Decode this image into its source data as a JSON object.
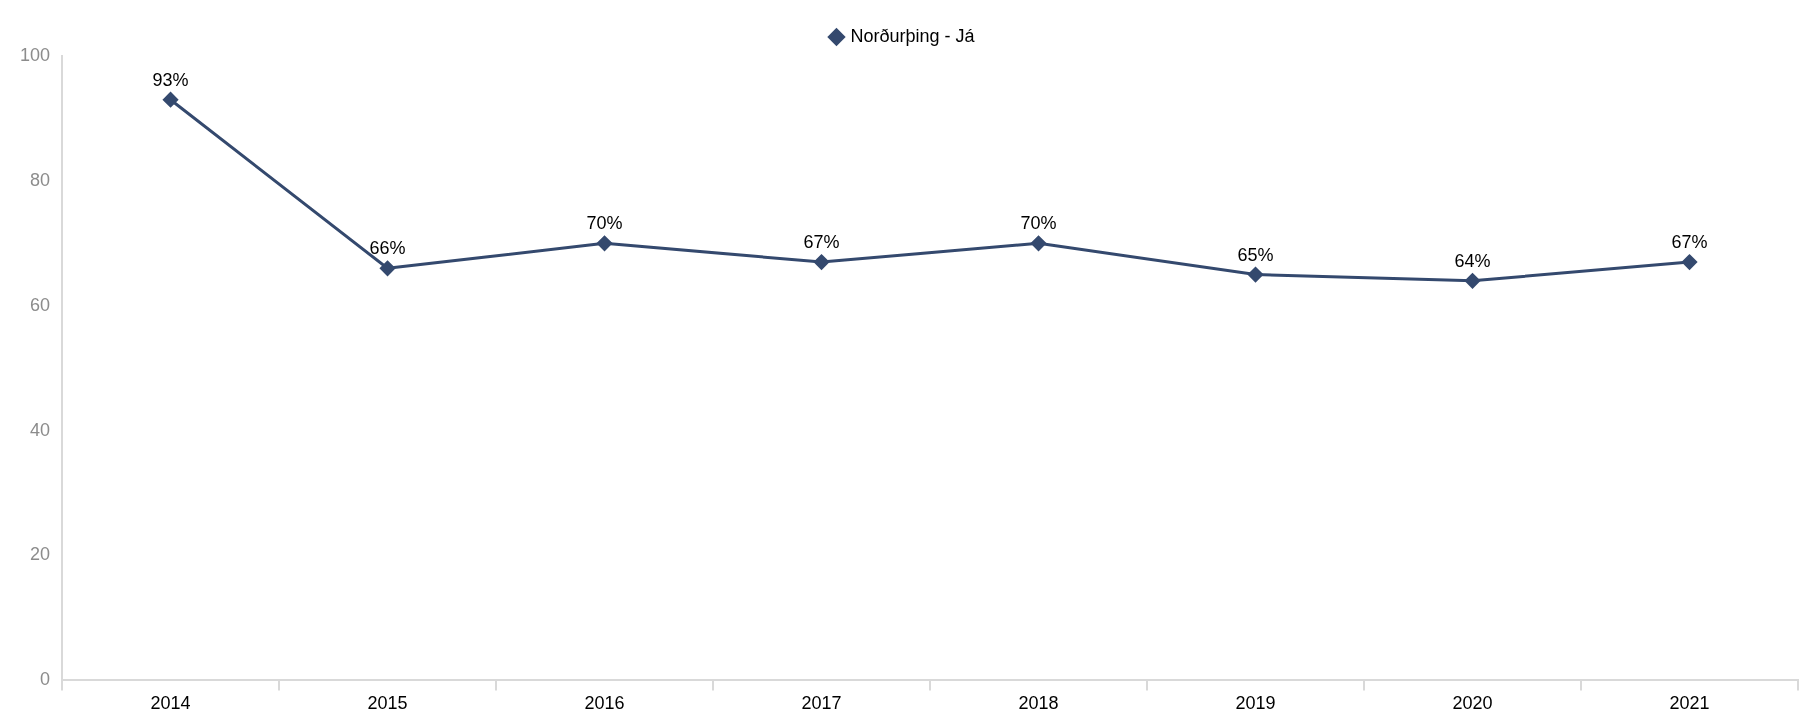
{
  "chart_data": {
    "type": "line",
    "categories": [
      "2014",
      "2015",
      "2016",
      "2017",
      "2018",
      "2019",
      "2020",
      "2021"
    ],
    "series": [
      {
        "name": "Norðurþing - Já",
        "color": "#34496e",
        "values": [
          93,
          66,
          70,
          67,
          70,
          65,
          64,
          67
        ],
        "value_labels": [
          "93%",
          "66%",
          "70%",
          "67%",
          "70%",
          "65%",
          "64%",
          "67%"
        ]
      }
    ],
    "ylim": [
      0,
      100
    ],
    "yticks": [
      0,
      20,
      40,
      60,
      80,
      100
    ],
    "grid": false,
    "legend": "top",
    "marker": "diamond",
    "line_style": "solid"
  }
}
